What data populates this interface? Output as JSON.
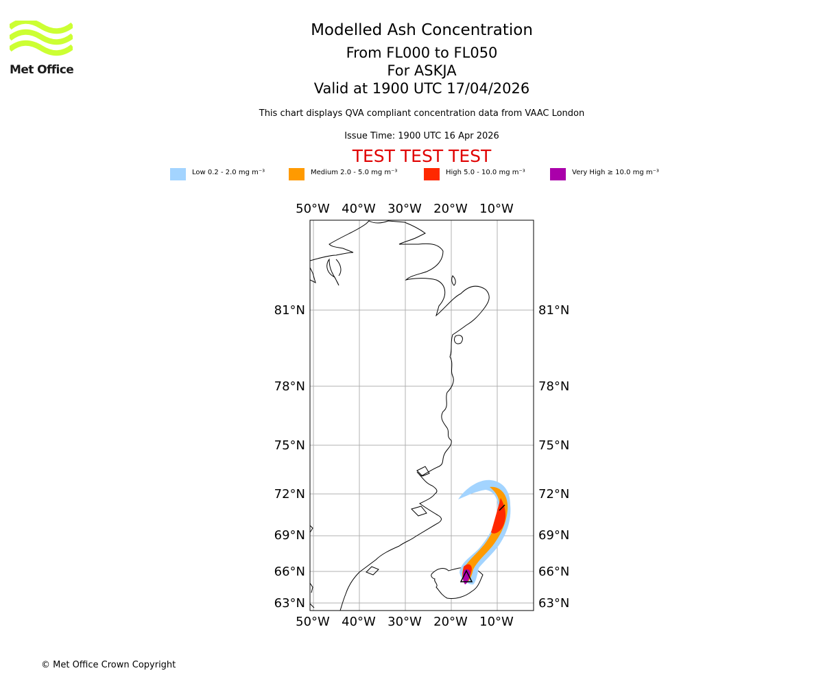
{
  "logo": {
    "text": "Met Office",
    "color": "#ccff33"
  },
  "title": {
    "main": "Modelled Ash Concentration",
    "levels": "From FL000 to FL050",
    "volcano": "For ASKJA",
    "valid": "Valid at 1900 UTC 17/04/2026"
  },
  "subtitle": "This chart displays QVA compliant concentration data from VAAC London",
  "issue_time": "Issue Time: 1900 UTC 16 Apr 2026",
  "test_banner": "TEST TEST TEST",
  "legend": [
    {
      "label": "Low 0.2 - 2.0 mg m⁻³",
      "color": "#a3d4ff"
    },
    {
      "label": "Medium 2.0 - 5.0 mg m⁻³",
      "color": "#ff9a00"
    },
    {
      "label": "High 5.0 - 10.0 mg m⁻³",
      "color": "#ff2800"
    },
    {
      "label": "Very High ≥ 10.0 mg m⁻³",
      "color": "#aa00aa"
    }
  ],
  "map": {
    "lon_ticks": [
      "50°W",
      "40°W",
      "30°W",
      "20°W",
      "10°W"
    ],
    "lat_ticks": [
      "81°N",
      "78°N",
      "75°N",
      "72°N",
      "69°N",
      "66°N",
      "63°N"
    ],
    "volcano_marker": "triangle"
  },
  "copyright": "© Met Office Crown Copyright"
}
